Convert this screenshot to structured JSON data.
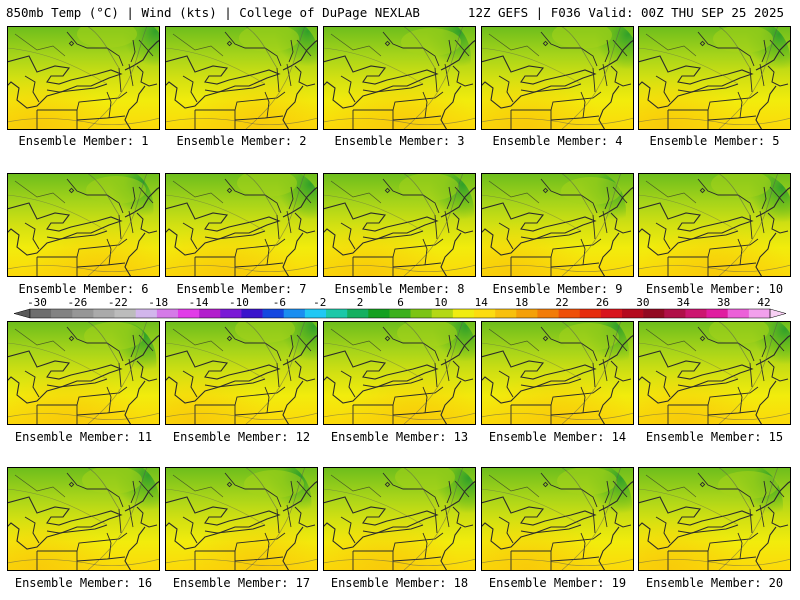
{
  "header": {
    "left": "850mb Temp (°C) | Wind (kts) | College of DuPage NEXLAB",
    "right": "12Z GEFS | F036 Valid: 00Z THU SEP 25 2025"
  },
  "members": [
    {
      "label": "Ensemble Member: 1"
    },
    {
      "label": "Ensemble Member: 2"
    },
    {
      "label": "Ensemble Member: 3"
    },
    {
      "label": "Ensemble Member: 4"
    },
    {
      "label": "Ensemble Member: 5"
    },
    {
      "label": "Ensemble Member: 6"
    },
    {
      "label": "Ensemble Member: 7"
    },
    {
      "label": "Ensemble Member: 8"
    },
    {
      "label": "Ensemble Member: 9"
    },
    {
      "label": "Ensemble Member: 10"
    },
    {
      "label": "Ensemble Member: 11"
    },
    {
      "label": "Ensemble Member: 12"
    },
    {
      "label": "Ensemble Member: 13"
    },
    {
      "label": "Ensemble Member: 14"
    },
    {
      "label": "Ensemble Member: 15"
    },
    {
      "label": "Ensemble Member: 16"
    },
    {
      "label": "Ensemble Member: 17"
    },
    {
      "label": "Ensemble Member: 18"
    },
    {
      "label": "Ensemble Member: 19"
    },
    {
      "label": "Ensemble Member: 20"
    }
  ],
  "colorbar": {
    "labels": [
      "-30",
      "-26",
      "-22",
      "-18",
      "-14",
      "-10",
      "-6",
      "-2",
      "2",
      "6",
      "10",
      "14",
      "18",
      "22",
      "26",
      "30",
      "34",
      "38",
      "42"
    ],
    "colors": [
      "#6e6e6e",
      "#828282",
      "#969696",
      "#aaaaaa",
      "#bcbcbc",
      "#d2b6ec",
      "#d57ae8",
      "#e13ce8",
      "#b21ecc",
      "#7a1ad6",
      "#3a14cc",
      "#1448e0",
      "#1a8ef0",
      "#20c8f4",
      "#1cc8a8",
      "#14b060",
      "#14a020",
      "#3cb01c",
      "#7cc414",
      "#b4d814",
      "#f0ec10",
      "#fcdc10",
      "#f8c00c",
      "#f4a008",
      "#f27c08",
      "#ee5008",
      "#e62c0c",
      "#d8141c",
      "#b40a1e",
      "#920a22",
      "#b01048",
      "#cc1670",
      "#e01ca0",
      "#ec60d8",
      "#f2a0ec"
    ],
    "left_arrow_color": "#5a5a5a",
    "right_arrow_color": "#f8d0f4"
  },
  "palette": {
    "warm_yellow": "#f2ec0c",
    "orange_yellow": "#fcd80a",
    "light_green": "#a6d41a",
    "mid_green": "#6cbd1c",
    "dark_green": "#30a02a",
    "map_line": "#2b2b2b"
  }
}
